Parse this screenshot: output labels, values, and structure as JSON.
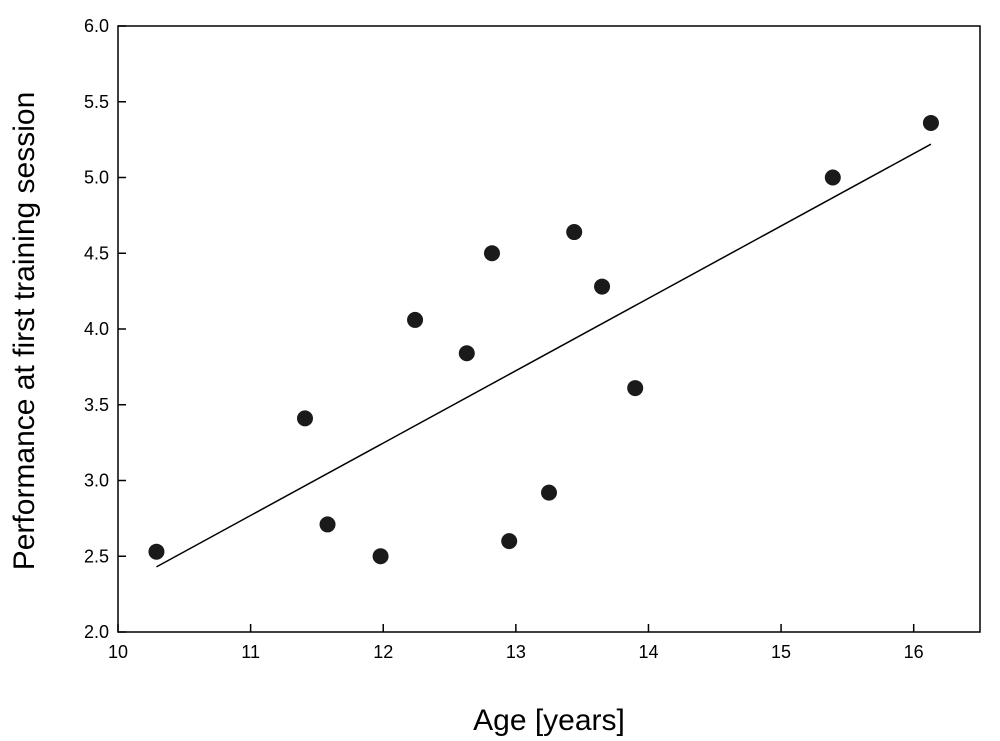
{
  "chart_data": {
    "type": "scatter",
    "title": "",
    "xlabel": "Age [years]",
    "ylabel": "Performance at first training session",
    "xlim": [
      10,
      16.5
    ],
    "ylim": [
      2.0,
      6.0
    ],
    "xticks": [
      10,
      11,
      12,
      13,
      14,
      15,
      16
    ],
    "xtick_labels": [
      "10",
      "11",
      "12",
      "13",
      "14",
      "15",
      "16"
    ],
    "yticks": [
      2.0,
      2.5,
      3.0,
      3.5,
      4.0,
      4.5,
      5.0,
      5.5,
      6.0
    ],
    "ytick_labels": [
      "2.0",
      "2.5",
      "3.0",
      "3.5",
      "4.0",
      "4.5",
      "5.0",
      "5.5",
      "6.0"
    ],
    "grid": false,
    "series": [
      {
        "points": [
          {
            "x": 10.29,
            "y": 2.53
          },
          {
            "x": 11.41,
            "y": 3.41
          },
          {
            "x": 11.58,
            "y": 2.71
          },
          {
            "x": 11.98,
            "y": 2.5
          },
          {
            "x": 12.24,
            "y": 4.06
          },
          {
            "x": 12.63,
            "y": 3.84
          },
          {
            "x": 12.82,
            "y": 4.5
          },
          {
            "x": 12.95,
            "y": 2.6
          },
          {
            "x": 13.25,
            "y": 2.92
          },
          {
            "x": 13.44,
            "y": 4.64
          },
          {
            "x": 13.65,
            "y": 4.28
          },
          {
            "x": 13.9,
            "y": 3.61
          },
          {
            "x": 15.39,
            "y": 5.0
          },
          {
            "x": 16.13,
            "y": 5.36
          }
        ],
        "color": "#1a1a1a"
      }
    ],
    "fit_line": {
      "x": [
        10.29,
        16.13
      ],
      "y": [
        2.43,
        5.22
      ],
      "color": "#000000"
    }
  }
}
